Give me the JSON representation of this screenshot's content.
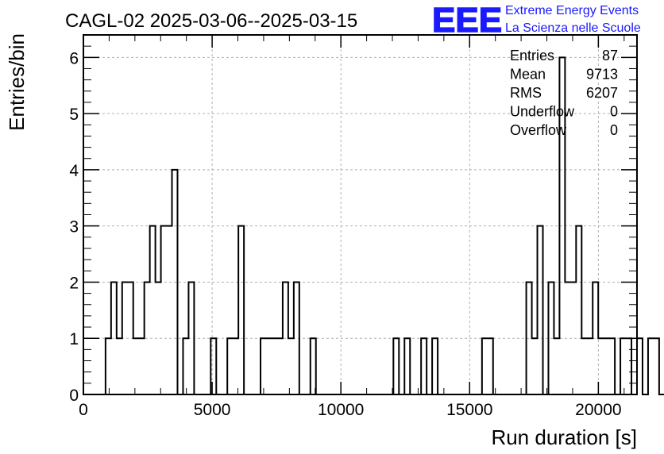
{
  "chart_data": {
    "type": "histogram",
    "title": "CAGL-02 2025-03-06--2025-03-15",
    "xlabel": "Run duration [s]",
    "ylabel": "Entries/bin",
    "xlim": [
      0,
      21500
    ],
    "ylim": [
      0,
      6.4
    ],
    "x_ticks": [
      0,
      5000,
      10000,
      15000,
      20000
    ],
    "y_ticks": [
      0,
      1,
      2,
      3,
      4,
      5,
      6
    ],
    "grid": true,
    "bin_width": 215,
    "bin_edges_start": 0,
    "counts": [
      0,
      0,
      0,
      0,
      1,
      2,
      1,
      2,
      2,
      1,
      1,
      2,
      3,
      2,
      3,
      3,
      4,
      0,
      1,
      2,
      0,
      0,
      0,
      1,
      0,
      0,
      1,
      1,
      3,
      0,
      0,
      0,
      1,
      1,
      1,
      1,
      2,
      1,
      2,
      0,
      0,
      1,
      0,
      0,
      0,
      0,
      0,
      0,
      0,
      0,
      0,
      0,
      0,
      0,
      0,
      0,
      1,
      0,
      1,
      0,
      0,
      1,
      0,
      1,
      0,
      0,
      0,
      0,
      0,
      0,
      0,
      0,
      1,
      1,
      0,
      0,
      0,
      0,
      0,
      0,
      2,
      1,
      3,
      0,
      2,
      1,
      6,
      2,
      2,
      3,
      1,
      1,
      2,
      1,
      1,
      1,
      0,
      1,
      1,
      0,
      1,
      0,
      1,
      1,
      0,
      0,
      1,
      0,
      0,
      0,
      0,
      0,
      0
    ],
    "stats": [
      {
        "label": "Entries",
        "value": "87"
      },
      {
        "label": "Mean",
        "value": "9713"
      },
      {
        "label": "RMS",
        "value": "6207"
      },
      {
        "label": "Underflow",
        "value": "0"
      },
      {
        "label": "Overflow",
        "value": "0"
      }
    ],
    "line_color": "#000000",
    "grid_color": "#b0b0b0"
  },
  "logo": {
    "mark": "EEE",
    "line1": "Extreme Energy Events",
    "line2": "La Scienza nelle Scuole",
    "color": "#1a1aff"
  }
}
